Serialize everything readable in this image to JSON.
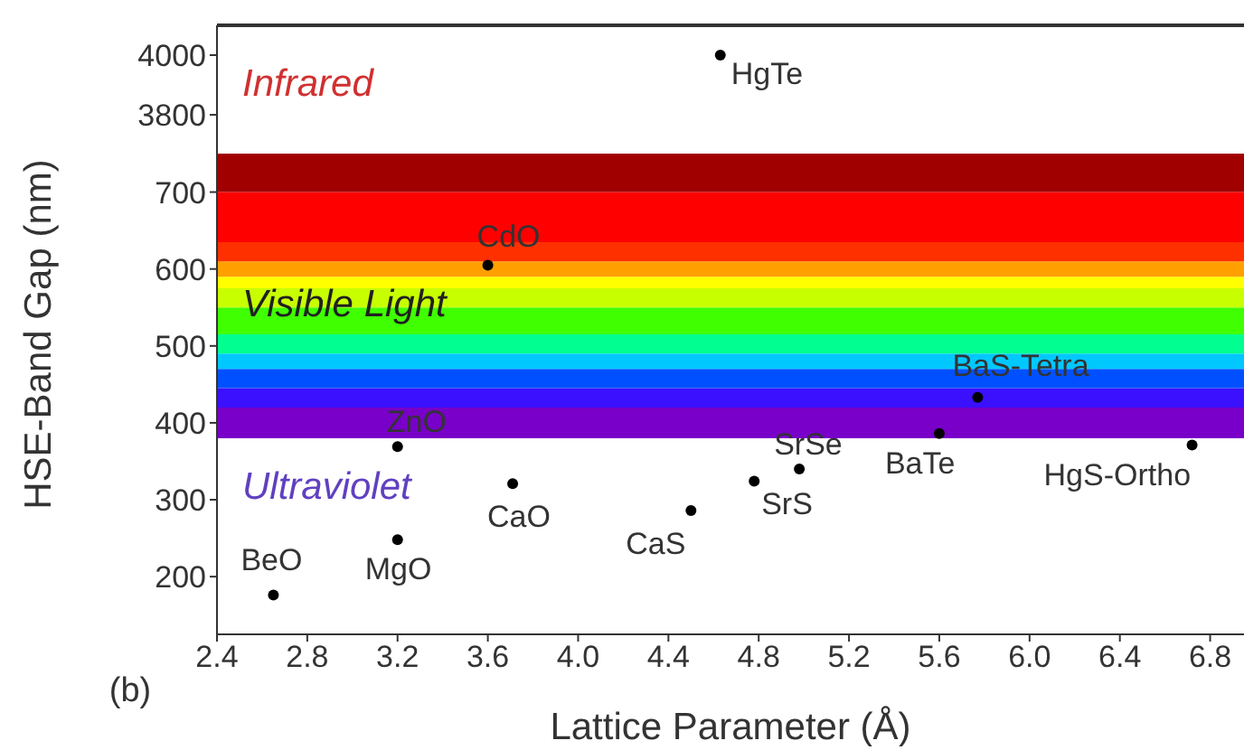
{
  "chart_data": [
    {
      "type": "scatter",
      "xlim": [
        2.4,
        6.95
      ],
      "ylim": [
        3670,
        4100
      ],
      "yticks": [
        3800,
        4000
      ],
      "tick_labels": "y",
      "marker": "circle",
      "grid": false,
      "annotations": [
        "Infrared"
      ],
      "series": [
        {
          "name": "HgTe",
          "color": "#000000",
          "x": [
            4.63
          ],
          "values": [
            4000
          ]
        }
      ]
    },
    {
      "type": "scatter",
      "xlim": [
        2.4,
        6.95
      ],
      "ylim": [
        125,
        750
      ],
      "xticks": [
        2.4,
        2.8,
        3.2,
        3.6,
        {
          "value": 4,
          "label": "4.0"
        },
        4.4,
        4.8,
        5.2,
        5.6,
        {
          "value": 6,
          "label": "6.0"
        },
        6.4,
        6.8
      ],
      "yticks": [
        200,
        300,
        400,
        500,
        600,
        700
      ],
      "xlabel": "Lattice Parameter (Å)",
      "ylabel": "HSE-Band Gap (nm)",
      "marker": "circle",
      "grid": false,
      "bands": [
        {
          "axis": "y",
          "from": 380,
          "to": 420,
          "color": "#7800c8"
        },
        {
          "axis": "y",
          "from": 420,
          "to": 445,
          "color": "#3a10ff"
        },
        {
          "axis": "y",
          "from": 445,
          "to": 470,
          "color": "#0050ff"
        },
        {
          "axis": "y",
          "from": 470,
          "to": 490,
          "color": "#00c8ff"
        },
        {
          "axis": "y",
          "from": 490,
          "to": 515,
          "color": "#00ff90"
        },
        {
          "axis": "y",
          "from": 515,
          "to": 550,
          "color": "#40ff00"
        },
        {
          "axis": "y",
          "from": 550,
          "to": 575,
          "color": "#c8ff00"
        },
        {
          "axis": "y",
          "from": 575,
          "to": 590,
          "color": "#ffff00"
        },
        {
          "axis": "y",
          "from": 590,
          "to": 610,
          "color": "#ffa000"
        },
        {
          "axis": "y",
          "from": 610,
          "to": 635,
          "color": "#ff3000"
        },
        {
          "axis": "y",
          "from": 635,
          "to": 700,
          "color": "#ff0000"
        },
        {
          "axis": "y",
          "from": 700,
          "to": 750,
          "color": "#a00000"
        }
      ],
      "annotations": [
        "Visible Light",
        "Ultraviolet",
        "(b)"
      ],
      "series": [
        {
          "name": "BeO",
          "color": "#000000",
          "x": [
            2.65
          ],
          "values": [
            176
          ]
        },
        {
          "name": "MgO",
          "color": "#000000",
          "x": [
            3.2
          ],
          "values": [
            248
          ]
        },
        {
          "name": "ZnO",
          "color": "#000000",
          "x": [
            3.2
          ],
          "values": [
            369
          ]
        },
        {
          "name": "CdO",
          "color": "#000000",
          "x": [
            3.6
          ],
          "values": [
            605
          ]
        },
        {
          "name": "CaO",
          "color": "#000000",
          "x": [
            3.71
          ],
          "values": [
            321
          ]
        },
        {
          "name": "CaS",
          "color": "#000000",
          "x": [
            4.5
          ],
          "values": [
            286
          ]
        },
        {
          "name": "SrS",
          "color": "#000000",
          "x": [
            4.78
          ],
          "values": [
            324
          ]
        },
        {
          "name": "SrSe",
          "color": "#000000",
          "x": [
            4.98
          ],
          "values": [
            340
          ]
        },
        {
          "name": "BaTe",
          "color": "#000000",
          "x": [
            5.6
          ],
          "values": [
            386
          ]
        },
        {
          "name": "BaS-Tetra",
          "color": "#000000",
          "x": [
            5.77
          ],
          "values": [
            433
          ]
        },
        {
          "name": "HgS-Ortho",
          "color": "#000000",
          "x": [
            6.72
          ],
          "values": [
            371
          ]
        }
      ]
    }
  ]
}
